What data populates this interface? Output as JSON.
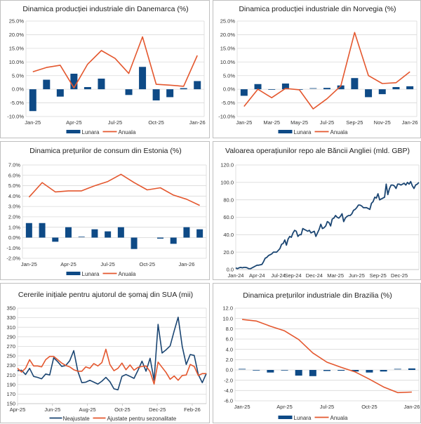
{
  "colors": {
    "bar": "#0e4a86",
    "annual": "#e4572e",
    "unadjusted": "#1a4572",
    "adjusted": "#e4572e",
    "grid": "#d9d9d9"
  },
  "chart_data": [
    {
      "id": "p1",
      "type": "bar+line",
      "title": "Dinamica producției industriale din Danemarca (%)",
      "categories": [
        "Jan-25",
        "Feb-25",
        "Mar-25",
        "Apr-25",
        "May-25",
        "Jun-25",
        "Jul-25",
        "Aug-25",
        "Sep-25",
        "Oct-25",
        "Nov-25",
        "Dec-25",
        "Jan-26"
      ],
      "xticks": [
        "Jan-25",
        "Apr-25",
        "Jul-25",
        "Oct-25",
        "Jan-26"
      ],
      "xtick_index": [
        0,
        3,
        6,
        9,
        12
      ],
      "series": [
        {
          "name": "Lunara",
          "kind": "bar",
          "values": [
            -8.0,
            3.5,
            -2.7,
            5.7,
            0.8,
            3.9,
            null,
            -2.1,
            8.2,
            -4.1,
            -2.9,
            0.4,
            3.0
          ]
        },
        {
          "name": "Anuala",
          "kind": "line",
          "values": [
            6.4,
            8.0,
            8.8,
            0.5,
            9.2,
            14.2,
            11.3,
            5.8,
            19.2,
            1.8,
            1.5,
            1.1,
            12.4
          ]
        }
      ],
      "ylim": [
        -10,
        25
      ],
      "ystep": 5,
      "yfmt": "pct1",
      "yticks": [
        "-10.0%",
        "-5.0%",
        "0.0%",
        "5.0%",
        "10.0%",
        "15.0%",
        "20.0%",
        "25.0%"
      ],
      "legend": [
        "Lunara",
        "Anuala"
      ],
      "legend_position": "bottom"
    },
    {
      "id": "p2",
      "type": "bar+line",
      "title": "Dinamica producției industriale din Norvegia (%)",
      "categories": [
        "Jan-25",
        "Feb-25",
        "Mar-25",
        "Apr-25",
        "May-25",
        "Jun-25",
        "Jul-25",
        "Aug-25",
        "Sep-25",
        "Oct-25",
        "Nov-25",
        "Dec-25",
        "Jan-26"
      ],
      "xticks": [
        "Jan-25",
        "Mar-25",
        "May-25",
        "Jul-25",
        "Sep-25",
        "Nov-25",
        "Jan-26"
      ],
      "xtick_index": [
        0,
        2,
        4,
        6,
        8,
        10,
        12
      ],
      "series": [
        {
          "name": "Lunara",
          "kind": "bar",
          "values": [
            -2.4,
            1.9,
            -0.2,
            2.1,
            -0.2,
            0.2,
            0.5,
            1.4,
            4.1,
            -2.9,
            -1.8,
            0.8,
            1.1
          ]
        },
        {
          "name": "Anuala",
          "kind": "line",
          "values": [
            -6.3,
            0.0,
            -3.1,
            0.3,
            -0.2,
            -7.2,
            -3.5,
            1.2,
            20.8,
            5.0,
            2.1,
            2.4,
            6.4
          ]
        }
      ],
      "ylim": [
        -10,
        25
      ],
      "ystep": 5,
      "yticks": [
        "-10.0%",
        "-5.0%",
        "0.0%",
        "5.0%",
        "10.0%",
        "15.0%",
        "20.0%",
        "25.0%"
      ],
      "legend": [
        "Lunara",
        "Anuala"
      ],
      "legend_position": "bottom"
    },
    {
      "id": "p3",
      "type": "bar+line",
      "title": "Dinamica prețurilor de consum din Estonia (%)",
      "categories": [
        "Jan-25",
        "Feb-25",
        "Mar-25",
        "Apr-25",
        "May-25",
        "Jun-25",
        "Jul-25",
        "Aug-25",
        "Sep-25",
        "Oct-25",
        "Nov-25",
        "Dec-25",
        "Jan-26",
        "Feb-26"
      ],
      "xticks": [
        "Jan-25",
        "Apr-25",
        "Jul-25",
        "Oct-25",
        "Jan-26"
      ],
      "xtick_index": [
        0,
        3,
        6,
        9,
        12
      ],
      "series": [
        {
          "name": "Lunara",
          "kind": "bar",
          "values": [
            1.4,
            1.4,
            -0.4,
            1.0,
            0.05,
            0.8,
            0.6,
            1.0,
            -1.1,
            null,
            -0.1,
            -0.6,
            1.0,
            0.8
          ]
        },
        {
          "name": "Anuala",
          "kind": "line",
          "values": [
            3.9,
            5.3,
            4.4,
            4.5,
            4.5,
            5.0,
            5.4,
            6.1,
            5.3,
            4.6,
            4.8,
            4.1,
            3.7,
            3.1
          ]
        }
      ],
      "ylim": [
        -2,
        7
      ],
      "ystep": 1,
      "yticks": [
        "-2.0%",
        "-1.0%",
        "0.0%",
        "1.0%",
        "2.0%",
        "3.0%",
        "4.0%",
        "5.0%",
        "6.0%",
        "7.0%"
      ],
      "legend": [
        "Lunara",
        "Anuala"
      ],
      "legend_position": "bottom"
    },
    {
      "id": "p4",
      "type": "line",
      "title": "Valoarea operațiunilor repo ale Băncii Angliei (mld. GBP)",
      "x_range": [
        "Jan-24",
        "Feb-26"
      ],
      "xticks": [
        "Jan-24",
        "Apr-24",
        "Jul-24",
        "Sep-24",
        "Dec-24",
        "Mar-25",
        "Jun-25",
        "Sep-25",
        "Dec-25"
      ],
      "xtick_week": [
        0,
        13,
        26,
        35,
        48,
        61,
        74,
        87,
        100
      ],
      "series": [
        {
          "name": "Repo",
          "kind": "line",
          "values": [
            2,
            1,
            2,
            2.5,
            2,
            2.5,
            2.5,
            2,
            1,
            1,
            2,
            3,
            4,
            5,
            5,
            5.5,
            6,
            9,
            13,
            14,
            16,
            17,
            18,
            20,
            20,
            20,
            22,
            24,
            29,
            30,
            34,
            28,
            35,
            38,
            37,
            42,
            45,
            44,
            38,
            40,
            40,
            47,
            46,
            45,
            44,
            45,
            42,
            43,
            44,
            38,
            42,
            46,
            52,
            47,
            48,
            50,
            55,
            54,
            50,
            58,
            59,
            62,
            60,
            59,
            61,
            64,
            55,
            59,
            61,
            62,
            62,
            64,
            68,
            69,
            71,
            74,
            74,
            73,
            71,
            71,
            71,
            70,
            69,
            76,
            78,
            83,
            82,
            87,
            80,
            81,
            82,
            83,
            98,
            86,
            93,
            97,
            97,
            96,
            93,
            98,
            98,
            97,
            98,
            99,
            97,
            100,
            98,
            101,
            96,
            93,
            97,
            98,
            100
          ]
        }
      ],
      "ylim": [
        0,
        120
      ],
      "ystep": 20,
      "yticks": [
        "0.0",
        "20.0",
        "40.0",
        "60.0",
        "80.0",
        "100.0",
        "120.0"
      ]
    },
    {
      "id": "p5",
      "type": "line",
      "title": "Cererile inițiale pentru ajutorul de șomaj din SUA (mii)",
      "xticks": [
        "Apr-25",
        "Jun-25",
        "Aug-25",
        "Oct-25",
        "Dec-25",
        "Feb-26"
      ],
      "xtick_week": [
        0,
        8.7,
        17.4,
        26.1,
        34.8,
        43.5
      ],
      "series": [
        {
          "name": "Neajustate",
          "kind": "line",
          "values": [
            219,
            220,
            211,
            224,
            207,
            205,
            202,
            212,
            210,
            246,
            238,
            228,
            230,
            240,
            261,
            218,
            194,
            195,
            199,
            195,
            191,
            197,
            205,
            196,
            181,
            179,
            207,
            211,
            207,
            203,
            220,
            239,
            218,
            245,
            199,
            316,
            256,
            263,
            271,
            302,
            331,
            270,
            232,
            253,
            251,
            211,
            194,
            213
          ]
        },
        {
          "name": "Ajustate pentru sezonalitate",
          "kind": "line",
          "values": [
            224,
            216,
            224,
            242,
            229,
            229,
            227,
            242,
            249,
            249,
            242,
            235,
            230,
            227,
            221,
            218,
            218,
            227,
            224,
            234,
            229,
            236,
            264,
            232,
            219,
            224,
            235,
            221,
            231,
            220,
            226,
            228,
            229,
            217,
            191,
            237,
            226,
            215,
            201,
            208,
            199,
            209,
            210,
            232,
            228,
            209,
            213,
            213
          ]
        }
      ],
      "ylim": [
        150,
        350
      ],
      "ystep": 20,
      "yticks": [
        "150",
        "170",
        "190",
        "210",
        "230",
        "250",
        "270",
        "290",
        "310",
        "330",
        "350"
      ],
      "legend": [
        "Neajustate",
        "Ajustate pentru sezonalitate"
      ],
      "legend_position": "bottom"
    },
    {
      "id": "p6",
      "type": "bar+line",
      "title": "Dinamica prețurilor industriale din Brazilia (%)",
      "categories": [
        "Jan-25",
        "Feb-25",
        "Mar-25",
        "Apr-25",
        "May-25",
        "Jun-25",
        "Jul-25",
        "Aug-25",
        "Sep-25",
        "Oct-25",
        "Nov-25",
        "Dec-25",
        "Jan-26"
      ],
      "xticks": [
        "Jan-25",
        "Apr-25",
        "Jul-25",
        "Oct-25",
        "Jan-26"
      ],
      "xtick_index": [
        0,
        3,
        6,
        9,
        12
      ],
      "series": [
        {
          "name": "Lunara",
          "kind": "bar",
          "values": [
            0.1,
            -0.1,
            -0.5,
            -0.05,
            -1.1,
            -1.2,
            -0.2,
            -0.15,
            -0.3,
            -0.5,
            -0.3,
            0.1,
            0.3
          ]
        },
        {
          "name": "Anuala",
          "kind": "line",
          "values": [
            9.8,
            9.5,
            8.5,
            7.6,
            5.9,
            3.3,
            1.5,
            0.5,
            -0.4,
            -1.8,
            -3.3,
            -4.4,
            -4.3
          ]
        }
      ],
      "ylim": [
        -6,
        12
      ],
      "ystep": 2,
      "yticks": [
        "-6.0",
        "-4.0",
        "-2.0",
        "0.0",
        "2.0",
        "4.0",
        "6.0",
        "8.0",
        "10.0",
        "12.0"
      ],
      "legend": [
        "Lunara",
        "Anuala"
      ],
      "legend_position": "bottom"
    }
  ]
}
